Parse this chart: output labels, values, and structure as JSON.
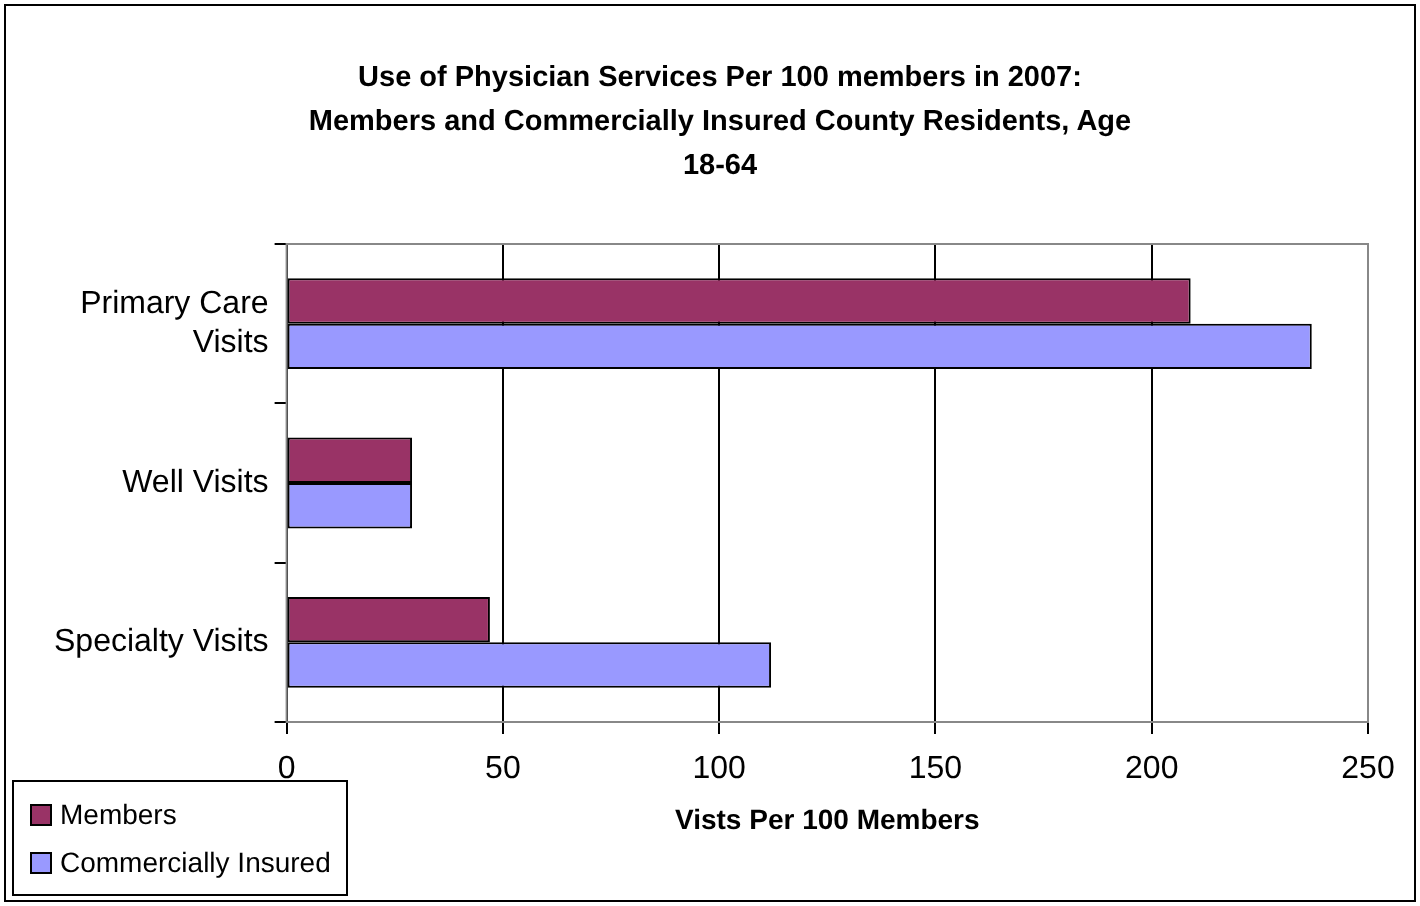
{
  "chart_data": {
    "type": "bar",
    "orientation": "horizontal",
    "title": "Use of Physician Services Per 100 members in 2007:  Members and Commercially Insured County Residents, Age 18-64",
    "xlabel": "Vists Per 100 Members",
    "categories": [
      "Primary Care Visits",
      "Well Visits",
      "Specialty Visits"
    ],
    "series": [
      {
        "name": "Members",
        "color": "#993366",
        "values": [
          209,
          29,
          47
        ]
      },
      {
        "name": "Commercially Insured",
        "color": "#9999ff",
        "values": [
          237,
          29,
          112
        ]
      }
    ],
    "xlim": [
      0,
      250
    ],
    "xticks": [
      0,
      50,
      100,
      150,
      200,
      250
    ],
    "grid": "x",
    "legend": "bottom left"
  }
}
